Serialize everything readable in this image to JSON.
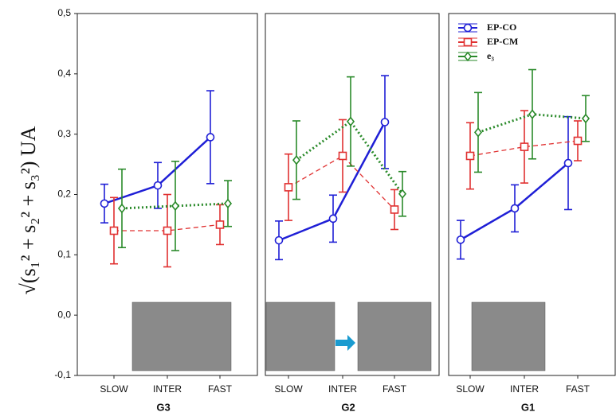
{
  "chart_data": [
    {
      "type": "line",
      "title": "G3",
      "ylabel": "√(s₁² + s₂² + s₃²) UA",
      "categories": [
        "SLOW",
        "INTER",
        "FAST"
      ],
      "ylim": [
        -0.1,
        0.5
      ],
      "yticks": [
        {
          "value": -0.1,
          "label": "-0,1"
        },
        {
          "value": 0,
          "label": "0,0"
        },
        {
          "value": 0.1,
          "label": "0,1"
        },
        {
          "value": 0.2,
          "label": "0,2"
        },
        {
          "value": 0.3,
          "label": "0,3"
        },
        {
          "value": 0.4,
          "label": "0,4"
        },
        {
          "value": 0.5,
          "label": "0,5"
        }
      ],
      "series": [
        {
          "color": "#1f1fd6",
          "linestyle": "solid",
          "marker": "circle",
          "values": [
            0.185,
            0.215,
            0.295
          ],
          "errors": [
            0.032,
            0.038,
            0.077
          ]
        },
        {
          "color": "#e03030",
          "linestyle": "dashed",
          "marker": "square",
          "values": [
            0.14,
            0.14,
            0.15
          ],
          "errors": [
            0.055,
            0.06,
            0.033
          ]
        },
        {
          "color": "#2a8a2a",
          "linestyle": "dotted",
          "marker": "diamond",
          "values": [
            0.177,
            0.181,
            0.185
          ],
          "errors": [
            0.065,
            0.074,
            0.038
          ]
        }
      ]
    },
    {
      "type": "line",
      "title": "G2",
      "categories": [
        "SLOW",
        "INTER",
        "FAST"
      ],
      "ylim": [
        -0.1,
        0.5
      ],
      "series": [
        {
          "color": "#1f1fd6",
          "linestyle": "solid",
          "marker": "circle",
          "values": [
            0.124,
            0.16,
            0.32
          ],
          "errors": [
            0.032,
            0.039,
            0.077
          ]
        },
        {
          "color": "#e03030",
          "linestyle": "dashed",
          "marker": "square",
          "values": [
            0.212,
            0.264,
            0.175
          ],
          "errors": [
            0.055,
            0.06,
            0.033
          ]
        },
        {
          "color": "#2a8a2a",
          "linestyle": "dotted",
          "marker": "diamond",
          "values": [
            0.257,
            0.321,
            0.201
          ],
          "errors": [
            0.065,
            0.074,
            0.037
          ]
        }
      ]
    },
    {
      "type": "line",
      "title": "G1",
      "categories": [
        "SLOW",
        "INTER",
        "FAST"
      ],
      "ylim": [
        -0.1,
        0.5
      ],
      "legend": "upper left",
      "series": [
        {
          "name": "EP-CO",
          "color": "#1f1fd6",
          "linestyle": "solid",
          "marker": "circle",
          "values": [
            0.125,
            0.177,
            0.252
          ],
          "errors": [
            0.032,
            0.039,
            0.077
          ]
        },
        {
          "name": "EP-CM",
          "color": "#e03030",
          "linestyle": "dashed",
          "marker": "square",
          "values": [
            0.264,
            0.279,
            0.289
          ],
          "errors": [
            0.055,
            0.06,
            0.033
          ]
        },
        {
          "name": "e₃",
          "color": "#2a8a2a",
          "linestyle": "dotted",
          "marker": "diamond",
          "values": [
            0.303,
            0.333,
            0.326
          ],
          "errors": [
            0.066,
            0.074,
            0.038
          ]
        }
      ]
    }
  ]
}
